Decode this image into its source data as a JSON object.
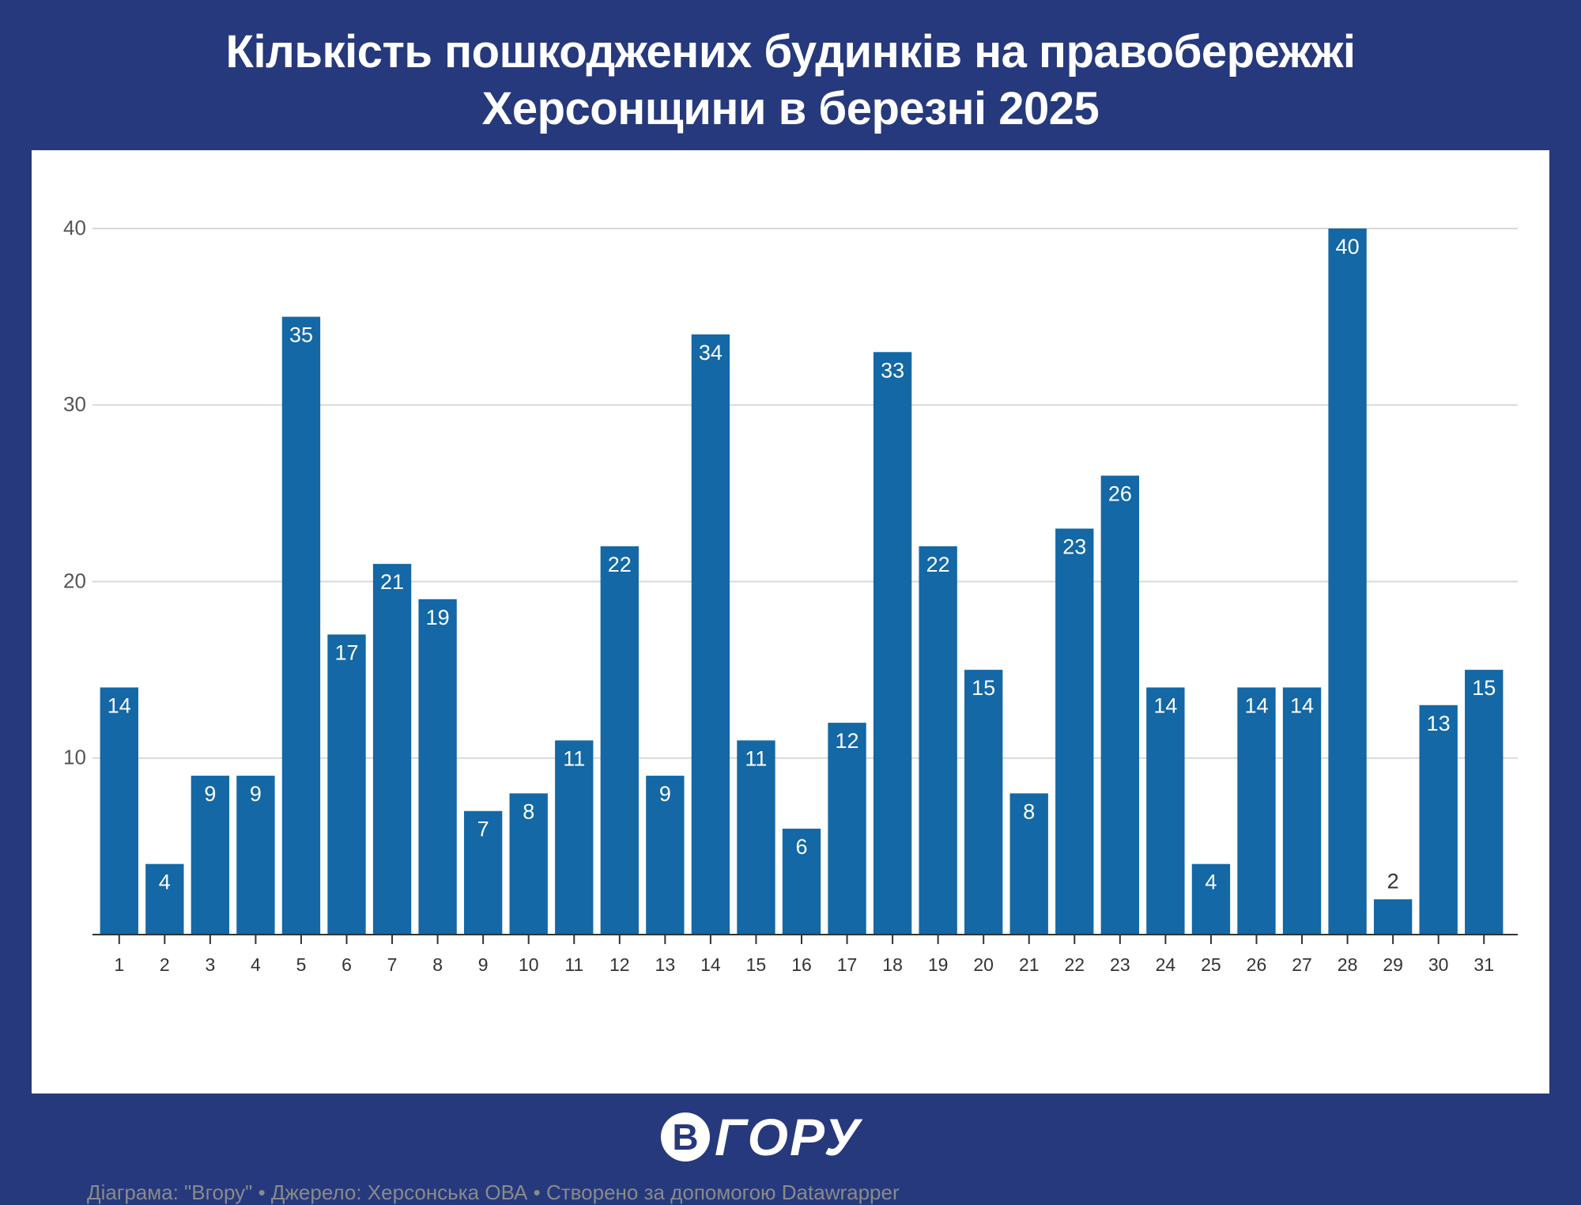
{
  "title_line1": "Кількість пошкоджених будинків на правобережжі",
  "title_line2": "Херсонщини в березні 2025",
  "footer_note": "Діаграма: \"Вгору\" • Джерело: Херсонська ОВА • Створено за допомогою Datawrapper",
  "logo": {
    "circle_letter": "В",
    "text": "ГОРУ"
  },
  "colors": {
    "background": "#26397c",
    "bar": "#1368a5",
    "grid": "#d9d9d9",
    "axis_text": "#555555",
    "label_inside": "#ffffff",
    "label_outside": "#333333"
  },
  "chart_data": {
    "type": "bar",
    "title": "Кількість пошкоджених будинків на правобережжі Херсонщини в березні 2025",
    "xlabel": "",
    "ylabel": "",
    "ylim": [
      0,
      40
    ],
    "yticks": [
      10,
      20,
      30,
      40
    ],
    "grid": true,
    "categories": [
      "1",
      "2",
      "3",
      "4",
      "5",
      "6",
      "7",
      "8",
      "9",
      "10",
      "11",
      "12",
      "13",
      "14",
      "15",
      "16",
      "17",
      "18",
      "19",
      "20",
      "21",
      "22",
      "23",
      "24",
      "25",
      "26",
      "27",
      "28",
      "29",
      "30",
      "31"
    ],
    "values": [
      14,
      4,
      9,
      9,
      35,
      17,
      21,
      19,
      7,
      8,
      11,
      22,
      9,
      34,
      11,
      6,
      12,
      33,
      22,
      15,
      8,
      23,
      26,
      14,
      4,
      14,
      14,
      40,
      2,
      13,
      15
    ]
  }
}
